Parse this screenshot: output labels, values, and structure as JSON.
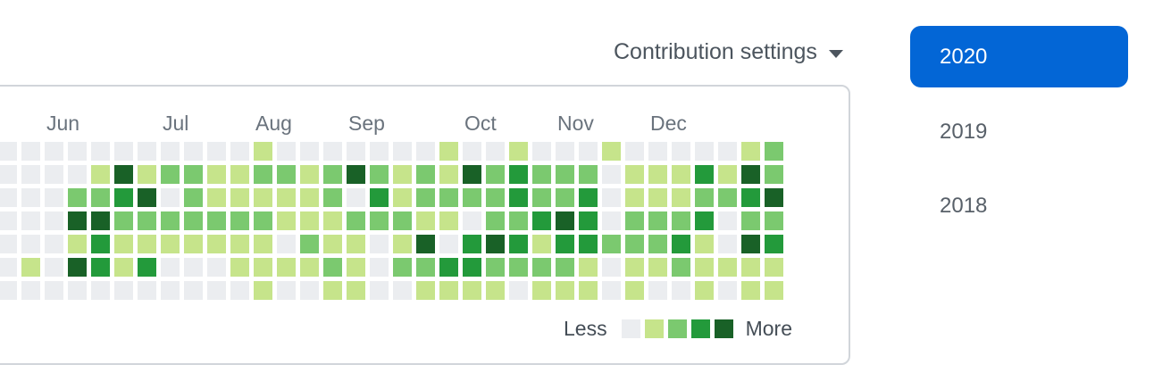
{
  "contribution_settings": {
    "label": "Contribution settings"
  },
  "year_selector": {
    "selected_bg": "#0366d6",
    "selected_text_color": "#ffffff",
    "inactive_text_color": "#586069",
    "items": [
      {
        "label": "2020",
        "selected": true
      },
      {
        "label": "2019",
        "selected": false
      },
      {
        "label": "2018",
        "selected": false
      }
    ]
  },
  "panel": {
    "border_color": "#d1d5da",
    "background": "#ffffff"
  },
  "chart_data": {
    "type": "heatmap",
    "title": "GitHub contribution calendar, visible weeks Jun-Dec of selected year 2020",
    "rows": 7,
    "cols": 34,
    "row_meaning": "weekday rows Sun-Sat (weekday axis labels cropped out of view)",
    "col_meaning": "one column per week",
    "month_labels": [
      {
        "label": "Jun",
        "week_col": 2
      },
      {
        "label": "Jul",
        "week_col": 7
      },
      {
        "label": "Aug",
        "week_col": 11
      },
      {
        "label": "Sep",
        "week_col": 15
      },
      {
        "label": "Oct",
        "week_col": 20
      },
      {
        "label": "Nov",
        "week_col": 24
      },
      {
        "label": "Dec",
        "week_col": 28
      }
    ],
    "level_palette": [
      "#ebedf0",
      "#c6e48b",
      "#7bc96f",
      "#239a3b",
      "#196127"
    ],
    "levels_by_row": [
      [
        0,
        0,
        0,
        0,
        0,
        0,
        0,
        0,
        0,
        0,
        0,
        1,
        0,
        0,
        0,
        0,
        0,
        0,
        0,
        1,
        0,
        0,
        1,
        0,
        0,
        0,
        1,
        0,
        0,
        0,
        0,
        0,
        1,
        2
      ],
      [
        0,
        0,
        0,
        0,
        1,
        4,
        1,
        2,
        2,
        1,
        1,
        2,
        2,
        1,
        2,
        4,
        2,
        1,
        2,
        1,
        4,
        2,
        3,
        2,
        2,
        2,
        0,
        1,
        1,
        1,
        3,
        1,
        4,
        2
      ],
      [
        0,
        0,
        0,
        2,
        2,
        3,
        4,
        0,
        2,
        1,
        1,
        1,
        1,
        1,
        2,
        0,
        3,
        1,
        2,
        2,
        2,
        2,
        3,
        2,
        2,
        3,
        0,
        1,
        1,
        1,
        2,
        2,
        3,
        4
      ],
      [
        0,
        0,
        0,
        4,
        4,
        2,
        2,
        2,
        2,
        2,
        2,
        2,
        1,
        1,
        1,
        2,
        2,
        2,
        1,
        1,
        0,
        2,
        2,
        3,
        4,
        3,
        0,
        2,
        2,
        2,
        3,
        0,
        2,
        2
      ],
      [
        0,
        0,
        0,
        1,
        3,
        1,
        1,
        1,
        1,
        1,
        1,
        1,
        0,
        2,
        1,
        1,
        0,
        1,
        4,
        0,
        3,
        4,
        3,
        1,
        3,
        3,
        2,
        2,
        2,
        3,
        1,
        0,
        4,
        3
      ],
      [
        0,
        1,
        0,
        4,
        3,
        1,
        3,
        0,
        0,
        0,
        1,
        1,
        1,
        1,
        2,
        1,
        0,
        2,
        2,
        3,
        3,
        2,
        2,
        2,
        2,
        1,
        0,
        1,
        1,
        2,
        1,
        1,
        1,
        1
      ],
      [
        0,
        0,
        0,
        0,
        0,
        0,
        0,
        0,
        0,
        0,
        0,
        1,
        0,
        0,
        1,
        1,
        0,
        0,
        1,
        1,
        1,
        1,
        0,
        1,
        1,
        1,
        0,
        1,
        0,
        0,
        1,
        0,
        1,
        1
      ]
    ],
    "legend": {
      "less": "Less",
      "more": "More"
    }
  }
}
